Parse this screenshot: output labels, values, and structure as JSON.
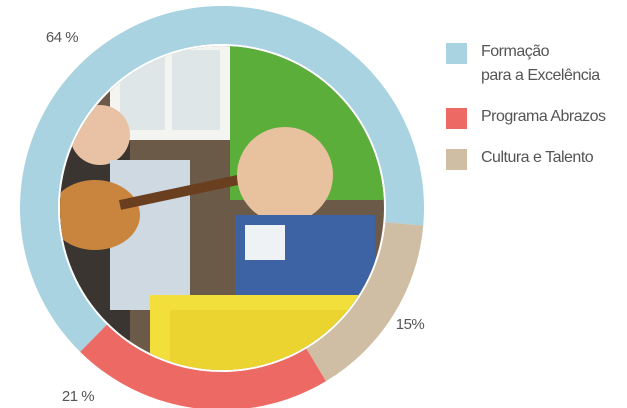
{
  "chart_data": {
    "type": "donut",
    "series": [
      {
        "name": "Formação\npara a Excelência",
        "color": "#a9d3e0"
      },
      {
        "name": "Programa Abrazos",
        "color": "#ec6a63"
      },
      {
        "name": "Cultura e Talento",
        "color": "#cfbea3"
      }
    ],
    "values": [
      64,
      21,
      15
    ],
    "value_labels": [
      "64 %",
      "21 %",
      "15%"
    ]
  }
}
